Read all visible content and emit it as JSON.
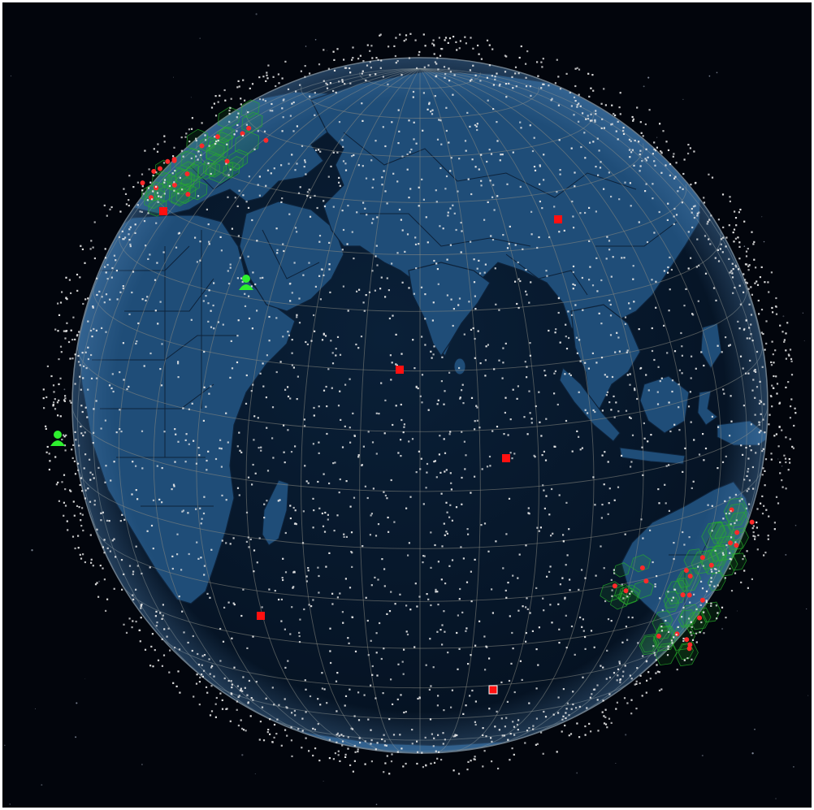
{
  "scene": {
    "kind": "satellite-constellation-globe",
    "colors": {
      "space_background": "#02050c",
      "ocean": "#071a2e",
      "land": "#1f4d78",
      "land_border": "#0d223a",
      "graticule": "#8a8a82",
      "satellite": "#e6e6e6",
      "ground_station": "#ff1010",
      "ground_station_outline": "#ffffff",
      "coverage_cell": "#27b02b",
      "user_terminal": "#2ef02e"
    },
    "satellite_count_visible": "≈2,900",
    "ground_station_markers": 7,
    "coverage_clusters": [
      {
        "region": "north-west",
        "cells": "dense"
      },
      {
        "region": "south-east",
        "cells": "dense"
      },
      {
        "region": "south-east-inner",
        "cells": "sparse"
      }
    ],
    "user_terminals": 2,
    "graticule": true,
    "country_borders": true,
    "icons": {
      "ground_station": "red-square-icon",
      "user_terminal": "green-person-icon"
    }
  }
}
